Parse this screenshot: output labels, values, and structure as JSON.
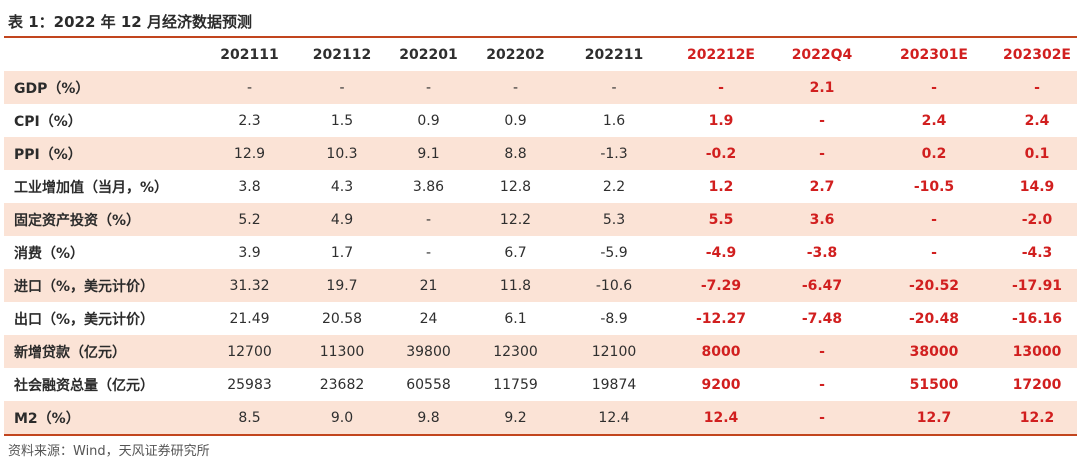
{
  "title": "表 1：2022 年 12 月经济数据预测",
  "source": "资料来源：Wind，天风证券研究所",
  "accent_color": "#c2451e",
  "band_color": "#fbe3d6",
  "forecast_color": "#d11f1f",
  "table": {
    "header_blank": "",
    "columns": [
      {
        "label": "202111",
        "forecast": false
      },
      {
        "label": "202112",
        "forecast": false
      },
      {
        "label": "202201",
        "forecast": false
      },
      {
        "label": "202202",
        "forecast": false
      },
      {
        "label": "202211",
        "forecast": false
      },
      {
        "label": "202212E",
        "forecast": true
      },
      {
        "label": "2022Q4",
        "forecast": true
      },
      {
        "label": "202301E",
        "forecast": true
      },
      {
        "label": "202302E",
        "forecast": true
      }
    ],
    "rows": [
      {
        "label": "GDP（%）",
        "values": [
          "-",
          "-",
          "-",
          "-",
          "-",
          "-",
          "2.1",
          "-",
          "-"
        ]
      },
      {
        "label": "CPI（%）",
        "values": [
          "2.3",
          "1.5",
          "0.9",
          "0.9",
          "1.6",
          "1.9",
          "-",
          "2.4",
          "2.4"
        ]
      },
      {
        "label": "PPI（%）",
        "values": [
          "12.9",
          "10.3",
          "9.1",
          "8.8",
          "-1.3",
          "-0.2",
          "-",
          "0.2",
          "0.1"
        ]
      },
      {
        "label": "工业增加值（当月，%）",
        "values": [
          "3.8",
          "4.3",
          "3.86",
          "12.8",
          "2.2",
          "1.2",
          "2.7",
          "-10.5",
          "14.9"
        ]
      },
      {
        "label": "固定资产投资（%）",
        "values": [
          "5.2",
          "4.9",
          "-",
          "12.2",
          "5.3",
          "5.5",
          "3.6",
          "-",
          "-2.0"
        ]
      },
      {
        "label": "消费（%）",
        "values": [
          "3.9",
          "1.7",
          "-",
          "6.7",
          "-5.9",
          "-4.9",
          "-3.8",
          "-",
          "-4.3"
        ]
      },
      {
        "label": "进口（%，美元计价）",
        "values": [
          "31.32",
          "19.7",
          "21",
          "11.8",
          "-10.6",
          "-7.29",
          "-6.47",
          "-20.52",
          "-17.91"
        ]
      },
      {
        "label": "出口（%，美元计价）",
        "values": [
          "21.49",
          "20.58",
          "24",
          "6.1",
          "-8.9",
          "-12.27",
          "-7.48",
          "-20.48",
          "-16.16"
        ]
      },
      {
        "label": "新增贷款（亿元）",
        "values": [
          "12700",
          "11300",
          "39800",
          "12300",
          "12100",
          "8000",
          "-",
          "38000",
          "13000"
        ]
      },
      {
        "label": "社会融资总量（亿元）",
        "values": [
          "25983",
          "23682",
          "60558",
          "11759",
          "19874",
          "9200",
          "-",
          "51500",
          "17200"
        ]
      },
      {
        "label": "M2（%）",
        "values": [
          "8.5",
          "9.0",
          "9.8",
          "9.2",
          "12.4",
          "12.4",
          "-",
          "12.7",
          "12.2"
        ]
      }
    ]
  }
}
